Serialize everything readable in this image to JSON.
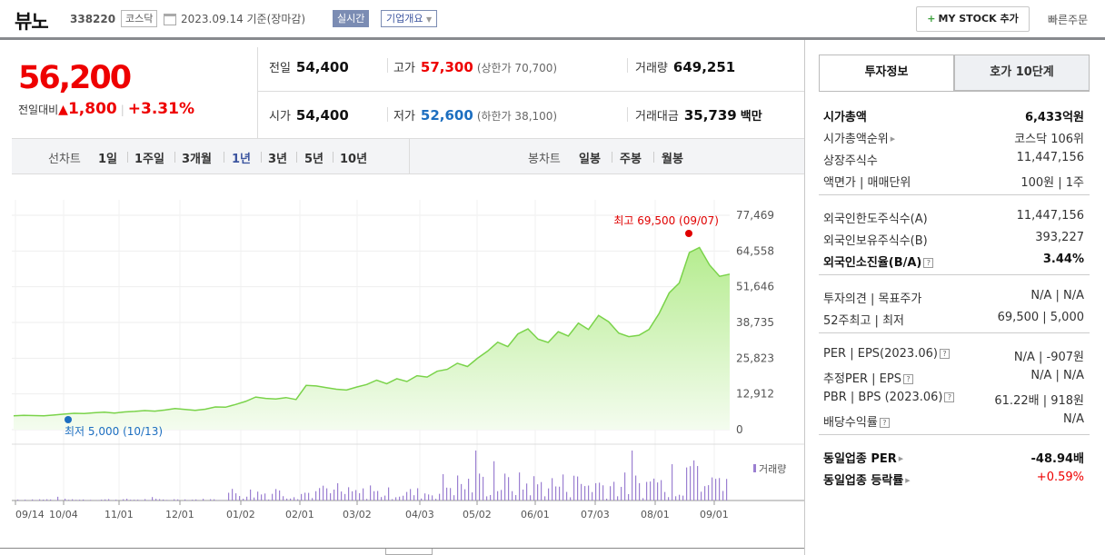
{
  "header": {
    "name": "뷰노",
    "code": "338220",
    "market": "코스닥",
    "date": "2023.09.14 기준(장마감)",
    "realtime": "실시간",
    "overview": "기업개요",
    "mystock_label": "MY STOCK 추가",
    "quick_order": "빠른주문"
  },
  "quote": {
    "price": "56,200",
    "change_label": "전일대비",
    "change_value": "1,800",
    "change_rate": "+3.31%",
    "prev_label": "전일",
    "prev": "54,400",
    "high_label": "고가",
    "high": "57,300",
    "upper_limit": "(상한가 70,700)",
    "volume_label": "거래량",
    "volume": "649,251",
    "open_label": "시가",
    "open": "54,400",
    "low_label": "저가",
    "low": "52,600",
    "lower_limit": "(하한가 38,100)",
    "amount_label": "거래대금",
    "amount": "35,739",
    "amount_unit": "백만"
  },
  "toolbar": {
    "line_label": "선차트",
    "ranges": [
      "1일",
      "1주일",
      "3개월",
      "1년",
      "3년",
      "5년",
      "10년"
    ],
    "selected_range": "1년",
    "candle_label": "봉차트",
    "candles": [
      "일봉",
      "주봉",
      "월봉"
    ]
  },
  "chart_data": {
    "type": "area",
    "x_ticks": [
      "09/14",
      "10/04",
      "11/01",
      "12/01",
      "01/02",
      "02/01",
      "03/02",
      "04/03",
      "05/02",
      "06/01",
      "07/03",
      "08/01",
      "09/01"
    ],
    "y_ticks": [
      "77,469",
      "64,558",
      "51,646",
      "38,735",
      "25,823",
      "12,912",
      "0"
    ],
    "ylim": [
      0,
      77469
    ],
    "high_annotation": "최고 69,500 (09/07)",
    "low_annotation": "최저 5,000 (10/13)",
    "volume_legend": "거래량",
    "series": [
      {
        "values": [
          5000,
          5200,
          5100,
          5000,
          5300,
          5600,
          5900,
          5800,
          6100,
          6300,
          6000,
          6400,
          6600,
          6900,
          6700,
          7100,
          7600,
          7300,
          7000,
          7400,
          8200,
          8100,
          9100,
          10200,
          11800,
          11300,
          11100,
          11600,
          10900,
          16000,
          15800,
          15200,
          14600,
          14300,
          15400,
          16300,
          17900,
          16600,
          18400,
          17400,
          19500,
          19000,
          21100,
          21800,
          24000,
          22800,
          25800,
          28400,
          31600,
          30000,
          34600,
          36400,
          32700,
          31500,
          35400,
          33800,
          38500,
          36200,
          41300,
          39000,
          34900,
          33600,
          34100,
          36200,
          42000,
          49400,
          53000,
          64000,
          65800,
          59500,
          55400,
          56200
        ]
      }
    ],
    "colors": {
      "line": "#7ad34a",
      "high": "#e00000",
      "low": "#1c6ec0",
      "volume": "#9b7fd1"
    }
  },
  "invest": {
    "tabs": [
      "투자정보",
      "호가 10단계"
    ],
    "rows": [
      {
        "k": "시가총액",
        "v": "6,433억원"
      },
      {
        "k": "시가총액순위",
        "v": "코스닥 106위"
      },
      {
        "k": "상장주식수",
        "v": "11,447,156"
      },
      {
        "k": "액면가 | 매매단위",
        "v": "100원 | 1주"
      },
      {
        "k": "외국인한도주식수(A)",
        "v": "11,447,156"
      },
      {
        "k": "외국인보유주식수(B)",
        "v": "393,227"
      },
      {
        "k": "외국인소진율(B/A)",
        "v": "3.44%"
      },
      {
        "k": "투자의견 | 목표주가",
        "v": "N/A | N/A"
      },
      {
        "k": "52주최고 | 최저",
        "v": "69,500 | 5,000"
      },
      {
        "k": "PER | EPS(2023.06)",
        "v": "N/A | -907원"
      },
      {
        "k": "추정PER | EPS",
        "v": "N/A | N/A"
      },
      {
        "k": "PBR | BPS (2023.06)",
        "v": "61.22배 | 918원"
      },
      {
        "k": "배당수익률",
        "v": "N/A"
      },
      {
        "k": "동일업종 PER",
        "v": "-48.94배"
      },
      {
        "k": "동일업종 등락률",
        "v": "+0.59%"
      }
    ]
  }
}
